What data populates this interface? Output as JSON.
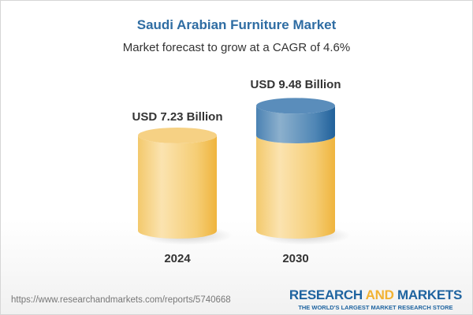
{
  "title": "Saudi Arabian Furniture Market",
  "subtitle": "Market forecast to grow at a CAGR of 4.6%",
  "chart_data": {
    "type": "bar",
    "style": "3d-cylinder",
    "categories": [
      "2024",
      "2030"
    ],
    "values": [
      7.23,
      9.48
    ],
    "data_labels": [
      "USD 7.23 Billion",
      "USD 9.48 Billion"
    ],
    "unit": "USD Billion",
    "colors": {
      "base": "#f3c35e",
      "growth": "#3d78ab"
    }
  },
  "footer": {
    "url": "https://www.researchandmarkets.com/reports/5740668",
    "logo_part1": "RESEARCH ",
    "logo_part2": "AND",
    "logo_part3": " MARKETS",
    "tagline": "THE WORLD'S LARGEST MARKET RESEARCH STORE"
  }
}
